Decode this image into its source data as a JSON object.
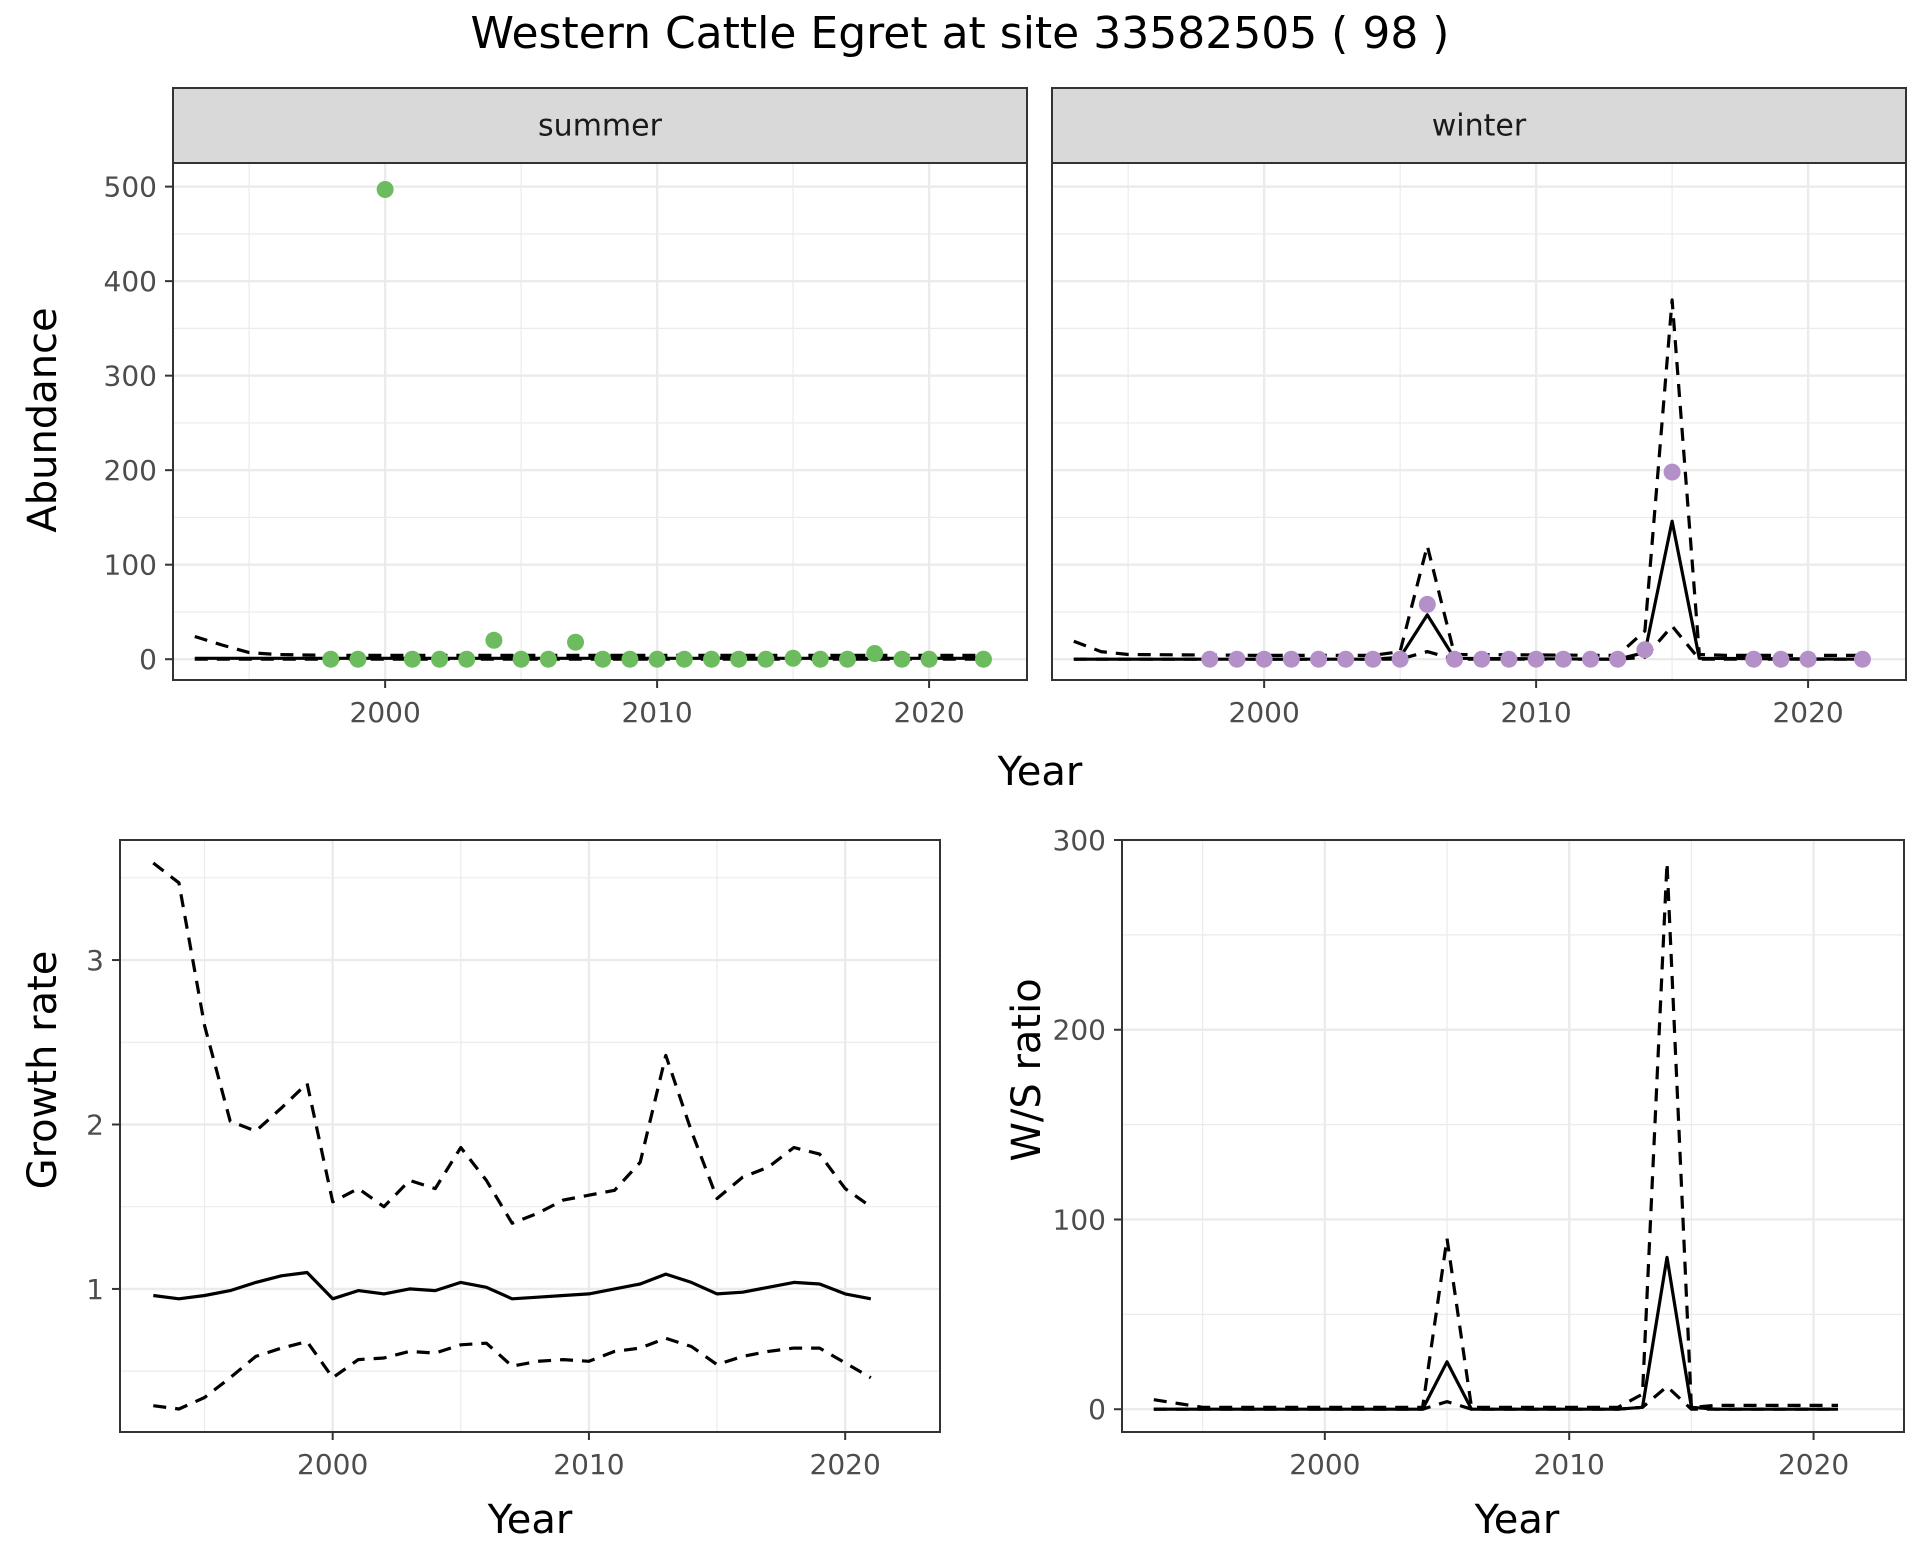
{
  "title": "Western Cattle Egret at site 33582505 ( 98 )",
  "colors": {
    "summer": "#6dbb5f",
    "winter": "#b490c8",
    "line": "#000000",
    "strip": "#d9d9d9",
    "grid": "#ebebeb"
  },
  "top_row": {
    "xlabel": "Year",
    "ylabel": "Abundance"
  },
  "chart_data": [
    {
      "type": "line",
      "panel": "summer",
      "strip_label": "summer",
      "ylabel": "Abundance",
      "xlim": [
        1992.2,
        2023.6
      ],
      "ylim": [
        -22,
        525
      ],
      "x_ticks": [
        2000,
        2010,
        2020
      ],
      "y_ticks": [
        0,
        100,
        200,
        300,
        400,
        500
      ],
      "grid": true,
      "points": {
        "x": [
          1998,
          1999,
          2000,
          2001,
          2002,
          2003,
          2004,
          2005,
          2006,
          2007,
          2008,
          2009,
          2010,
          2011,
          2012,
          2013,
          2014,
          2015,
          2016,
          2017,
          2018,
          2019,
          2020,
          2022
        ],
        "y": [
          0,
          0,
          497,
          0,
          0,
          0,
          20,
          0,
          0,
          18,
          0,
          0,
          0,
          0,
          0,
          0,
          0,
          1,
          0,
          0,
          6,
          0,
          0,
          0
        ]
      },
      "series": [
        {
          "style": "solid",
          "x": [
            1993,
            1995,
            2000,
            2005,
            2010,
            2015,
            2020,
            2022
          ],
          "y": [
            1,
            1,
            1,
            1,
            1,
            1,
            1,
            1
          ]
        },
        {
          "style": "dashed",
          "x": [
            1993,
            1994,
            1995,
            1996,
            1998,
            2000,
            2005,
            2010,
            2015,
            2020,
            2022
          ],
          "y": [
            24,
            15,
            7,
            5,
            4,
            4,
            4,
            4,
            4,
            4,
            4
          ]
        },
        {
          "style": "dashed",
          "x": [
            1993,
            2000,
            2010,
            2022
          ],
          "y": [
            0,
            0,
            0,
            0
          ]
        }
      ]
    },
    {
      "type": "line",
      "panel": "winter",
      "strip_label": "winter",
      "ylabel": "",
      "xlim": [
        1992.2,
        2023.6
      ],
      "ylim": [
        -22,
        525
      ],
      "x_ticks": [
        2000,
        2010,
        2020
      ],
      "y_ticks": [
        0,
        100,
        200,
        300,
        400,
        500
      ],
      "grid": true,
      "points": {
        "x": [
          1998,
          1999,
          2000,
          2001,
          2002,
          2003,
          2004,
          2005,
          2006,
          2007,
          2008,
          2009,
          2010,
          2011,
          2012,
          2013,
          2014,
          2015,
          2018,
          2019,
          2020,
          2022
        ],
        "y": [
          0,
          0,
          0,
          0,
          0,
          0,
          0,
          0,
          58,
          0,
          0,
          0,
          0,
          0,
          0,
          0,
          10,
          198,
          0,
          0,
          0,
          0
        ]
      },
      "series": [
        {
          "style": "solid",
          "x": [
            1993,
            2004,
            2005,
            2006,
            2007,
            2013,
            2014,
            2015,
            2016,
            2022
          ],
          "y": [
            0,
            0,
            2,
            47,
            1,
            0,
            7,
            146,
            1,
            0
          ]
        },
        {
          "style": "dashed",
          "x": [
            1993,
            1994,
            1995,
            2000,
            2004,
            2005,
            2006,
            2007,
            2013,
            2014,
            2015,
            2016,
            2017,
            2022
          ],
          "y": [
            19,
            8,
            5,
            4,
            4,
            8,
            120,
            5,
            4,
            30,
            380,
            5,
            4,
            4
          ]
        },
        {
          "style": "dashed",
          "x": [
            1993,
            2004,
            2005,
            2006,
            2007,
            2013,
            2014,
            2015,
            2016,
            2022
          ],
          "y": [
            0,
            0,
            0,
            8,
            0,
            0,
            2,
            35,
            0,
            0
          ]
        }
      ]
    },
    {
      "type": "line",
      "panel": "growth",
      "xlabel": "Year",
      "ylabel": "Growth rate",
      "xlim": [
        1991.7,
        2023.7
      ],
      "ylim": [
        0.13,
        3.73
      ],
      "x_ticks": [
        2000,
        2010,
        2020
      ],
      "y_ticks": [
        1,
        2,
        3
      ],
      "grid": true,
      "series": [
        {
          "style": "solid",
          "x": [
            1993,
            1994,
            1995,
            1996,
            1997,
            1998,
            1999,
            2000,
            2001,
            2002,
            2003,
            2004,
            2005,
            2006,
            2007,
            2008,
            2009,
            2010,
            2011,
            2012,
            2013,
            2014,
            2015,
            2016,
            2017,
            2018,
            2019,
            2020,
            2021
          ],
          "y": [
            0.96,
            0.94,
            0.96,
            0.99,
            1.04,
            1.08,
            1.1,
            0.94,
            0.99,
            0.97,
            1.0,
            0.99,
            1.04,
            1.01,
            0.94,
            0.95,
            0.96,
            0.97,
            1.0,
            1.03,
            1.09,
            1.04,
            0.97,
            0.98,
            1.01,
            1.04,
            1.03,
            0.97,
            0.94
          ]
        },
        {
          "style": "dashed",
          "x": [
            1993,
            1994,
            1995,
            1996,
            1997,
            1998,
            1999,
            2000,
            2001,
            2002,
            2003,
            2004,
            2005,
            2006,
            2007,
            2008,
            2009,
            2010,
            2011,
            2012,
            2013,
            2014,
            2015,
            2016,
            2017,
            2018,
            2019,
            2020,
            2021
          ],
          "y": [
            3.59,
            3.47,
            2.6,
            2.02,
            1.96,
            2.1,
            2.25,
            1.53,
            1.61,
            1.5,
            1.66,
            1.61,
            1.86,
            1.66,
            1.4,
            1.46,
            1.54,
            1.57,
            1.6,
            1.77,
            2.42,
            1.96,
            1.55,
            1.68,
            1.74,
            1.86,
            1.82,
            1.61,
            1.5
          ]
        },
        {
          "style": "dashed",
          "x": [
            1993,
            1994,
            1995,
            1996,
            1997,
            1998,
            1999,
            2000,
            2001,
            2002,
            2003,
            2004,
            2005,
            2006,
            2007,
            2008,
            2009,
            2010,
            2011,
            2012,
            2013,
            2014,
            2015,
            2016,
            2017,
            2018,
            2019,
            2020,
            2021
          ],
          "y": [
            0.29,
            0.27,
            0.34,
            0.46,
            0.59,
            0.64,
            0.68,
            0.46,
            0.57,
            0.58,
            0.62,
            0.61,
            0.66,
            0.67,
            0.53,
            0.56,
            0.57,
            0.56,
            0.62,
            0.64,
            0.7,
            0.65,
            0.54,
            0.59,
            0.62,
            0.64,
            0.64,
            0.55,
            0.46
          ]
        }
      ]
    },
    {
      "type": "line",
      "panel": "ws_ratio",
      "xlabel": "Year",
      "ylabel": "W/S ratio",
      "xlim": [
        1991.7,
        2023.7
      ],
      "ylim": [
        -12,
        300
      ],
      "x_ticks": [
        2000,
        2010,
        2020
      ],
      "y_ticks": [
        0,
        100,
        200,
        300
      ],
      "grid": true,
      "series": [
        {
          "style": "solid",
          "x": [
            1993,
            2004,
            2005,
            2006,
            2012,
            2013,
            2014,
            2015,
            2016,
            2021
          ],
          "y": [
            0,
            0,
            25,
            0,
            0,
            1,
            80,
            1,
            0,
            0
          ]
        },
        {
          "style": "dashed",
          "x": [
            1993,
            1994,
            1995,
            2000,
            2004,
            2005,
            2006,
            2012,
            2013,
            2014,
            2015,
            2016,
            2021
          ],
          "y": [
            5,
            3,
            1,
            1,
            1,
            90,
            1,
            1,
            8,
            288,
            1,
            2,
            2
          ]
        },
        {
          "style": "dashed",
          "x": [
            1993,
            2004,
            2005,
            2006,
            2012,
            2013,
            2014,
            2015,
            2021
          ],
          "y": [
            0,
            0,
            4,
            0,
            0,
            1,
            12,
            0,
            0
          ]
        }
      ]
    }
  ]
}
